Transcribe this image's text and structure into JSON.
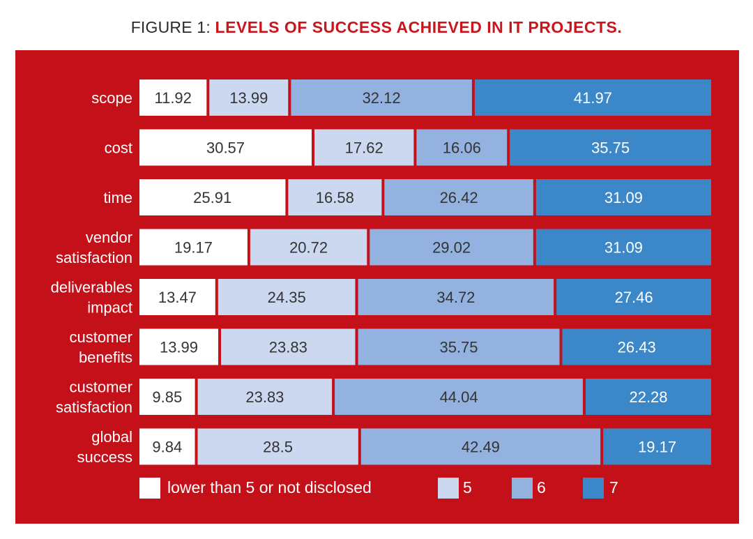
{
  "figure": {
    "prefix": "FIGURE 1: ",
    "title": "LEVELS OF SUCCESS ACHIEVED IN IT PROJECTS."
  },
  "colors": {
    "background": "#c41019",
    "lower": "#ffffff",
    "five": "#cbd8ef",
    "six": "#93b2df",
    "seven": "#3b87c7",
    "label_text": "#ffffff",
    "value_text": "#333333",
    "value_text_dark": "#ffffff"
  },
  "chart_data": {
    "type": "bar",
    "orientation": "horizontal",
    "stacked": true,
    "title": "LEVELS OF SUCCESS ACHIEVED IN IT PROJECTS.",
    "categories": [
      [
        "scope"
      ],
      [
        "cost"
      ],
      [
        "time"
      ],
      [
        "vendor",
        "satisfaction"
      ],
      [
        "deliverables",
        "impact"
      ],
      [
        "customer",
        "benefits"
      ],
      [
        "customer",
        "satisfaction"
      ],
      [
        "global",
        "success"
      ]
    ],
    "series": [
      {
        "name": "lower than 5 or not disclosed",
        "color": "#ffffff",
        "values": [
          11.92,
          30.57,
          25.91,
          19.17,
          13.47,
          13.99,
          9.85,
          9.84
        ]
      },
      {
        "name": "5",
        "color": "#cbd8ef",
        "values": [
          13.99,
          17.62,
          16.58,
          20.72,
          24.35,
          23.83,
          23.83,
          28.5
        ]
      },
      {
        "name": "6",
        "color": "#93b2df",
        "values": [
          32.12,
          16.06,
          26.42,
          29.02,
          34.72,
          35.75,
          44.04,
          42.49
        ]
      },
      {
        "name": "7",
        "color": "#3b87c7",
        "values": [
          41.97,
          35.75,
          31.09,
          31.09,
          27.46,
          26.43,
          22.28,
          19.17
        ]
      }
    ],
    "legend_position": "bottom",
    "grid": false
  }
}
